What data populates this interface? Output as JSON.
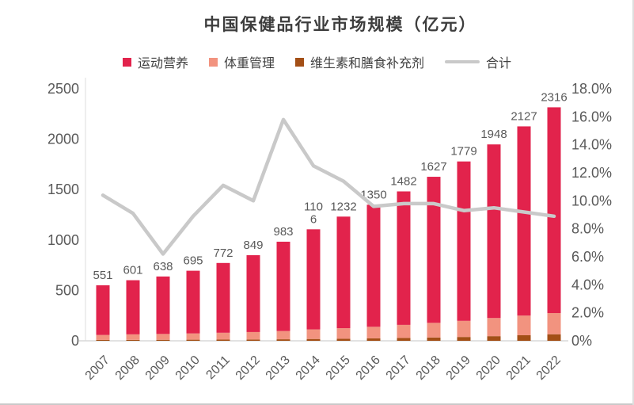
{
  "chart": {
    "title": "中国保健品行业市场规模（亿元）",
    "legend": [
      {
        "label": "运动营养",
        "color": "#e2234c",
        "marker": "square"
      },
      {
        "label": "体重管理",
        "color": "#f2937f",
        "marker": "square"
      },
      {
        "label": "维生素和膳食补充剂",
        "color": "#a34f16",
        "marker": "square"
      },
      {
        "label": "合计",
        "color": "#c9c9c9",
        "marker": "line"
      }
    ]
  },
  "chart_data": {
    "type": "bar",
    "subtype": "stacked-bar-with-line",
    "title": "中国保健品行业市场规模（亿元）",
    "categories": [
      "2007",
      "2008",
      "2009",
      "2010",
      "2011",
      "2012",
      "2013",
      "2014",
      "2015",
      "2016",
      "2017",
      "2018",
      "2019",
      "2020",
      "2021",
      "2022"
    ],
    "totals": [
      551,
      601,
      638,
      695,
      772,
      849,
      983,
      1106,
      1232,
      1350,
      1482,
      1627,
      1779,
      1948,
      2127,
      2316
    ],
    "total_labels": [
      "551",
      "601",
      "638",
      "695",
      "772",
      "849",
      "983",
      "110\n6",
      "1232",
      "1350",
      "1482",
      "1627",
      "1779",
      "1948",
      "2127",
      "2316"
    ],
    "series": [
      {
        "name": "维生素和膳食补充剂",
        "stack": "bottom",
        "color": "#a34f16",
        "values": [
          8,
          9,
          10,
          11,
          12,
          13,
          15,
          18,
          20,
          24,
          28,
          33,
          38,
          46,
          55,
          65
        ]
      },
      {
        "name": "体重管理",
        "stack": "middle",
        "color": "#f2937f",
        "values": [
          50,
          55,
          58,
          62,
          68,
          74,
          82,
          95,
          105,
          115,
          130,
          145,
          160,
          180,
          195,
          210
        ]
      },
      {
        "name": "运动营养",
        "stack": "top",
        "color": "#e2234c",
        "values": [
          493,
          537,
          570,
          622,
          692,
          762,
          886,
          993,
          1107,
          1211,
          1324,
          1449,
          1581,
          1722,
          1877,
          2041
        ]
      }
    ],
    "line_series": {
      "name": "合计",
      "axis": "right",
      "color": "#c9c9c9",
      "values_percent": [
        10.4,
        9.1,
        6.2,
        8.9,
        11.1,
        10.0,
        15.8,
        12.5,
        11.4,
        9.6,
        9.8,
        9.8,
        9.3,
        9.5,
        9.2,
        8.9
      ]
    },
    "left_axis": {
      "min": 0,
      "max": 2500,
      "step": 500,
      "ticks": [
        "0",
        "500",
        "1000",
        "1500",
        "2000",
        "2500"
      ]
    },
    "right_axis": {
      "min": 0,
      "max": 18,
      "step": 2,
      "ticks": [
        "0%",
        "2.0%",
        "4.0%",
        "6.0%",
        "8.0%",
        "10.0%",
        "12.0%",
        "14.0%",
        "16.0%",
        "18.0%"
      ]
    },
    "grid": false,
    "legend_position": "top",
    "xlabel": "",
    "ylabel": ""
  },
  "colors": {
    "axis_text": "#595959",
    "bar_label_text": "#595959",
    "axis_line": "#d9d9d9",
    "plot_left_border": "#e9e9e9"
  }
}
